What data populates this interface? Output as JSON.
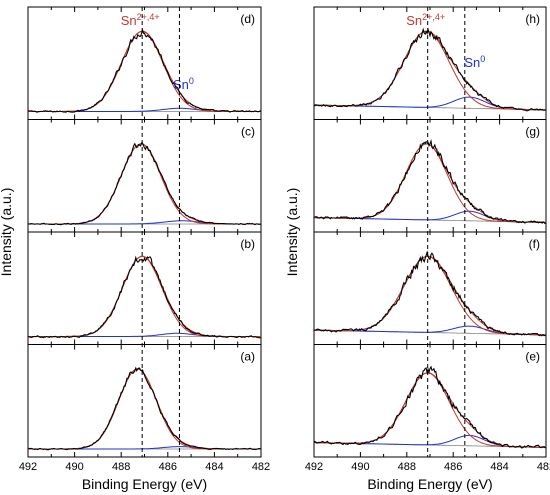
{
  "chart_data": {
    "type": "line",
    "x_axis": {
      "label": "Binding Energy (eV)",
      "range": [
        492,
        482
      ],
      "ticks": [
        "492",
        "490",
        "488",
        "486",
        "484",
        "482"
      ]
    },
    "y_axis": {
      "label": "Intensity (a.u.)"
    },
    "reference_lines_ev": [
      487.1,
      485.5
    ],
    "series_colors": {
      "measured": "#000000",
      "envelope": "#c0392b",
      "sn_oxide": "#c0392b",
      "sn_metal": "#2233cc",
      "background": "#808080"
    },
    "annotation_colors": {
      "sn_oxide": "#c0392b",
      "sn_metal": "#2233cc"
    },
    "columns": [
      {
        "panels": [
          {
            "label": "(d)",
            "sn_oxide_peak": {
              "center": 487.1,
              "height": 1.0,
              "fwhm": 2.1
            },
            "sn_metal_peak": {
              "center": 485.5,
              "height": 0.04,
              "fwhm": 1.7
            },
            "noise_amplitude": 0.02,
            "annotations": {
              "oxide_base": "Sn",
              "oxide_sup": "2+,4+",
              "metal_base": "Sn",
              "metal_sup": "0"
            }
          },
          {
            "label": "(c)",
            "sn_oxide_peak": {
              "center": 487.15,
              "height": 1.0,
              "fwhm": 2.0
            },
            "sn_metal_peak": {
              "center": 485.4,
              "height": 0.04,
              "fwhm": 1.8
            },
            "noise_amplitude": 0.015
          },
          {
            "label": "(b)",
            "sn_oxide_peak": {
              "center": 487.1,
              "height": 1.0,
              "fwhm": 2.0
            },
            "sn_metal_peak": {
              "center": 485.6,
              "height": 0.04,
              "fwhm": 1.6
            },
            "noise_amplitude": 0.02
          },
          {
            "label": "(a)",
            "sn_oxide_peak": {
              "center": 487.3,
              "height": 1.0,
              "fwhm": 1.9
            },
            "sn_metal_peak": {
              "center": 485.5,
              "height": 0.03,
              "fwhm": 1.6
            },
            "noise_amplitude": 0.015
          }
        ]
      },
      {
        "panels": [
          {
            "label": "(h)",
            "sn_oxide_peak": {
              "center": 487.15,
              "height": 0.95,
              "fwhm": 2.3
            },
            "sn_metal_peak": {
              "center": 485.3,
              "height": 0.14,
              "fwhm": 1.6
            },
            "noise_amplitude": 0.025,
            "annotations": {
              "oxide_base": "Sn",
              "oxide_sup": "2+,4+",
              "metal_base": "Sn",
              "metal_sup": "0"
            }
          },
          {
            "label": "(g)",
            "sn_oxide_peak": {
              "center": 487.15,
              "height": 0.95,
              "fwhm": 2.1
            },
            "sn_metal_peak": {
              "center": 485.3,
              "height": 0.12,
              "fwhm": 1.5
            },
            "noise_amplitude": 0.03
          },
          {
            "label": "(f)",
            "sn_oxide_peak": {
              "center": 487.1,
              "height": 0.95,
              "fwhm": 2.4
            },
            "sn_metal_peak": {
              "center": 485.3,
              "height": 0.09,
              "fwhm": 1.6
            },
            "noise_amplitude": 0.03
          },
          {
            "label": "(e)",
            "sn_oxide_peak": {
              "center": 487.1,
              "height": 0.9,
              "fwhm": 2.2
            },
            "sn_metal_peak": {
              "center": 485.3,
              "height": 0.13,
              "fwhm": 1.5
            },
            "noise_amplitude": 0.03
          }
        ]
      }
    ]
  }
}
